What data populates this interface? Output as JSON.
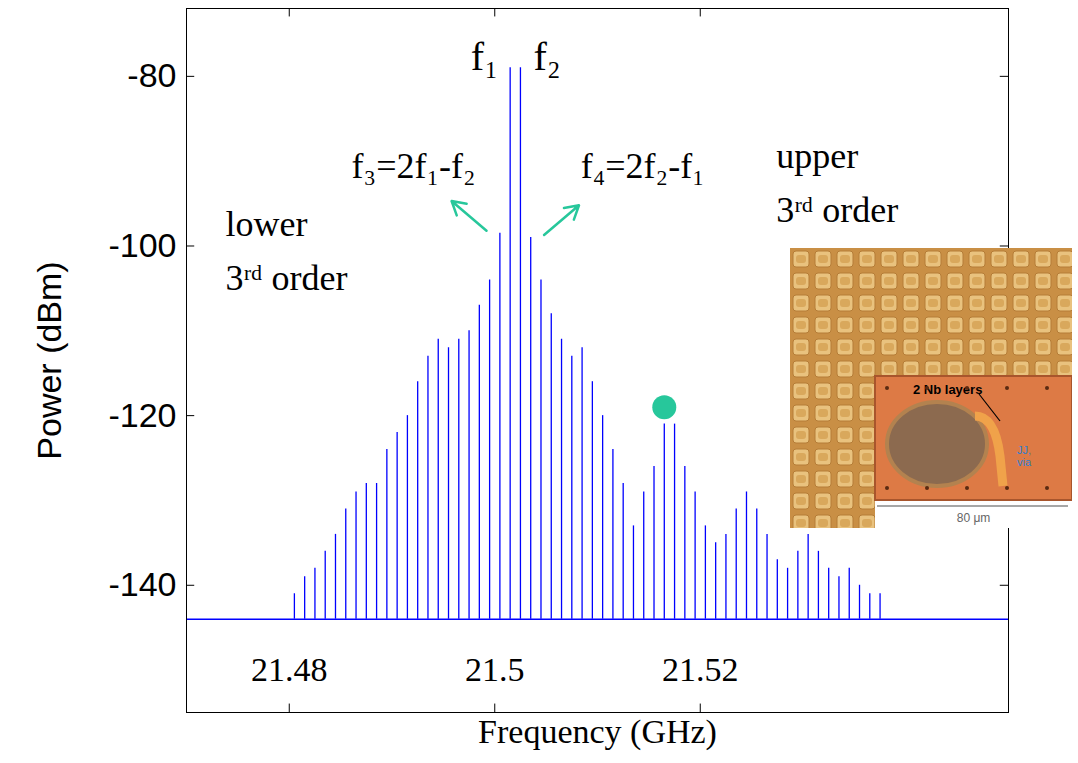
{
  "chart_data": {
    "type": "stem",
    "xlabel": "Frequency (GHz)",
    "ylabel": "Power (dBm)",
    "color": "#0000ff",
    "xlim": [
      21.47,
      21.55
    ],
    "ylim": [
      -155,
      -72
    ],
    "xticks": [
      21.48,
      21.5,
      21.52
    ],
    "yticks": [
      -140,
      -120,
      -100,
      -80
    ],
    "noise_floor": -144,
    "x": [
      21.4805,
      21.4815,
      21.4825,
      21.4835,
      21.4845,
      21.4855,
      21.4865,
      21.4875,
      21.4885,
      21.4895,
      21.4905,
      21.4915,
      21.4925,
      21.4935,
      21.4945,
      21.4955,
      21.4965,
      21.4975,
      21.4985,
      21.4995,
      21.5005,
      21.5015,
      21.5025,
      21.5035,
      21.5045,
      21.5055,
      21.5065,
      21.5075,
      21.5085,
      21.5095,
      21.5105,
      21.5115,
      21.5125,
      21.5135,
      21.5145,
      21.5155,
      21.5165,
      21.5175,
      21.5185,
      21.5195,
      21.5205,
      21.5215,
      21.5225,
      21.5235,
      21.5245,
      21.5255,
      21.5265,
      21.5275,
      21.5285,
      21.5295,
      21.5305,
      21.5315,
      21.5325,
      21.5335,
      21.5345,
      21.5355,
      21.5365,
      21.5375
    ],
    "values": [
      -141,
      -139,
      -138,
      -136,
      -134,
      -131,
      -129,
      -128,
      -128,
      -124,
      -122,
      -120,
      -116,
      -113,
      -111,
      -112,
      -111,
      -110,
      -107,
      -104,
      -98.5,
      -79,
      -79,
      -99,
      -104,
      -108,
      -111,
      -113,
      -112,
      -116,
      -120,
      -124,
      -128,
      -133,
      -129,
      -126,
      -121,
      -121,
      -126,
      -129,
      -133,
      -135,
      -134,
      -131,
      -129,
      -131,
      -134,
      -137,
      -138,
      -136,
      -134,
      -136,
      -138,
      -139,
      -138,
      -140,
      -141,
      -141
    ],
    "annotations": [
      {
        "text": "f₁",
        "x": 21.499,
        "y": -77
      },
      {
        "text": "f₂",
        "x": 21.5051,
        "y": -77
      },
      {
        "text": "f₃=2f₁-f₂",
        "x": 21.4921,
        "y": -90,
        "points_to": 21.5005
      },
      {
        "text": "f₄=2f₂-f₁",
        "x": 21.5144,
        "y": -90,
        "points_to": 21.5035
      },
      {
        "text": "lower\n3ʳᵈ order",
        "x": 21.4738,
        "y": -100
      },
      {
        "text": "upper\n3ʳᵈ order",
        "x": 21.5274,
        "y": -92
      }
    ],
    "highlight": {
      "x": 21.5165,
      "y": -119,
      "color": "#27c79b"
    },
    "inset": {
      "labels": [
        "2 Nb layers",
        "JJ,\nvia",
        "80 μm"
      ]
    }
  }
}
